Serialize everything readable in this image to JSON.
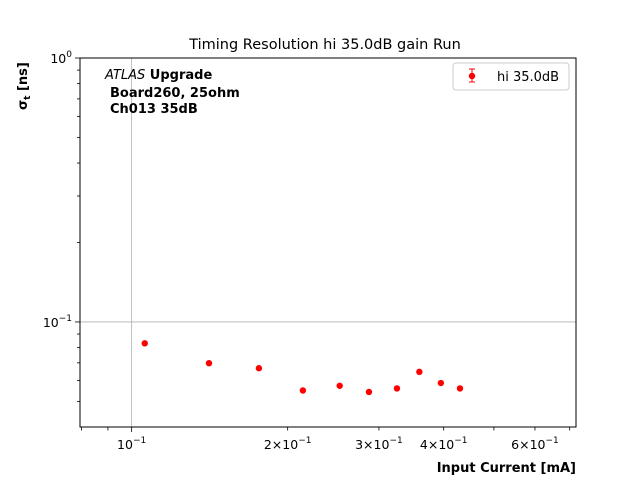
{
  "chart_data": {
    "type": "scatter",
    "title": "Timing Resolution hi 35.0dB gain Run",
    "xlabel": "Input Current [mA]",
    "ylabel_main": "σ",
    "ylabel_sub": "t",
    "ylabel_rest": " [ns]",
    "x_scale": "log",
    "y_scale": "log",
    "xlim": [
      0.0795,
      0.72
    ],
    "ylim": [
      0.04,
      1.0
    ],
    "grid": "major",
    "legend_position": "top-right",
    "annotation": {
      "atlas_italic": "ATLAS",
      "atlas_bold": " Upgrade",
      "line2": "Board260, 25ohm",
      "line3": "Ch013 35dB"
    },
    "x_ticks": [
      {
        "value": 0.1,
        "base": "10",
        "exp": "−1",
        "mult": ""
      },
      {
        "value": 0.2,
        "base": "10",
        "exp": "−1",
        "mult": "2×"
      },
      {
        "value": 0.3,
        "base": "10",
        "exp": "−1",
        "mult": "3×"
      },
      {
        "value": 0.4,
        "base": "10",
        "exp": "−1",
        "mult": "4×"
      },
      {
        "value": 0.6,
        "base": "10",
        "exp": "−1",
        "mult": "6×"
      }
    ],
    "y_ticks": [
      {
        "value": 0.1,
        "base": "10",
        "exp": "−1"
      },
      {
        "value": 1.0,
        "base": "10",
        "exp": "0"
      }
    ],
    "series": [
      {
        "name": "hi 35.0dB",
        "color": "#ff0000",
        "x": [
          0.106,
          0.141,
          0.176,
          0.214,
          0.252,
          0.287,
          0.325,
          0.359,
          0.395,
          0.43
        ],
        "y": [
          0.083,
          0.0698,
          0.0668,
          0.055,
          0.0573,
          0.0543,
          0.056,
          0.0647,
          0.0587,
          0.056
        ]
      }
    ]
  }
}
